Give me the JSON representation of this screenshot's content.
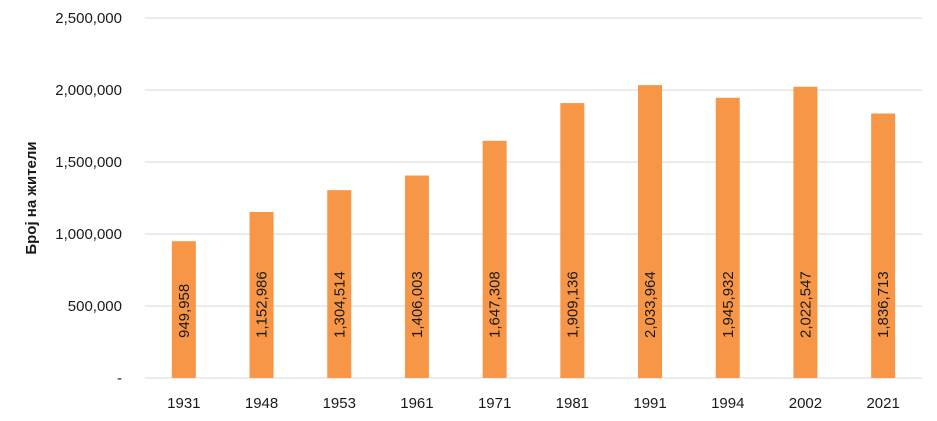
{
  "chart_data": {
    "type": "bar",
    "title": "",
    "xlabel": "",
    "ylabel": "Број на жители",
    "categories": [
      "1931",
      "1948",
      "1953",
      "1961",
      "1971",
      "1981",
      "1991",
      "1994",
      "2002",
      "2021"
    ],
    "values": [
      949958,
      1152986,
      1304514,
      1406003,
      1647308,
      1909136,
      2033964,
      1945932,
      2022547,
      1836713
    ],
    "data_labels": [
      "949,958",
      "1,152,986",
      "1,304,514",
      "1,406,003",
      "1,647,308",
      "1,909,136",
      "2,033,964",
      "1,945,932",
      "2,022,547",
      "1,836,713"
    ],
    "ylim": [
      0,
      2500000
    ],
    "yticks": [
      0,
      500000,
      1000000,
      1500000,
      2000000,
      2500000
    ],
    "ytick_labels": [
      "-",
      "500,000",
      "1,000,000",
      "1,500,000",
      "2,000,000",
      "2,500,000"
    ],
    "grid": true,
    "legend": "none",
    "bar_color": "#F79646",
    "data_label_orientation": "vertical"
  }
}
